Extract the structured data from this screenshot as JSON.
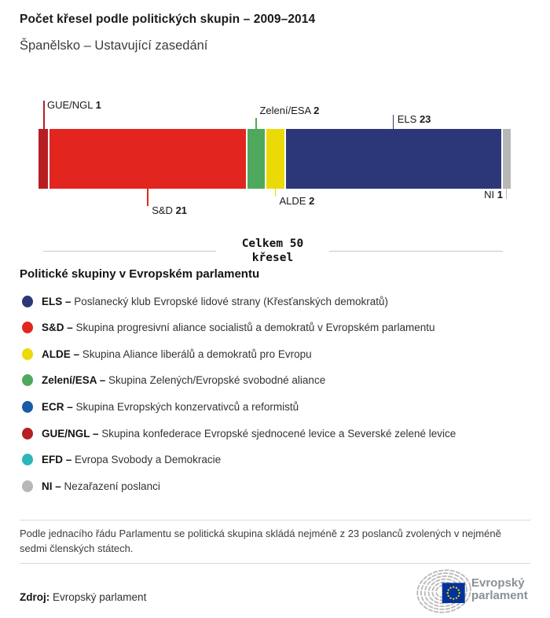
{
  "header": {
    "title": "Počet křesel podle politických skupin – 2009–2014",
    "subtitle": "Španělsko – Ustavující zasedání"
  },
  "chart_data": {
    "type": "bar",
    "stacked": true,
    "orientation": "horizontal",
    "title": "Počet křesel podle politických skupin – 2009–2014",
    "subtitle": "Španělsko – Ustavující zasedání",
    "total_seats": 50,
    "total_label_line1": "Celkem 50",
    "total_label_line2": "křesel",
    "segments": [
      {
        "code": "GUE/NGL",
        "seats": 1,
        "color": "#b71e23",
        "label_side": "above"
      },
      {
        "code": "S&D",
        "seats": 21,
        "color": "#e2261f",
        "label_side": "below"
      },
      {
        "code": "Zelení/ESA",
        "seats": 2,
        "color": "#4ea95c",
        "label_side": "above"
      },
      {
        "code": "ALDE",
        "seats": 2,
        "color": "#ecd908",
        "label_side": "below"
      },
      {
        "code": "ELS",
        "seats": 23,
        "color": "#2b3778",
        "label_side": "above"
      },
      {
        "code": "NI",
        "seats": 1,
        "color": "#b7b7b7",
        "label_side": "below"
      }
    ]
  },
  "legend": {
    "heading": "Politické skupiny v Evropském parlamentu",
    "items": [
      {
        "code": "ELS",
        "color": "#2b3778",
        "description": "Poslanecký klub Evropské lidové strany (Křesťanských demokratů)"
      },
      {
        "code": "S&D",
        "color": "#e2261f",
        "description": "Skupina progresivní aliance socialistů a demokratů v Evropském parlamentu"
      },
      {
        "code": "ALDE",
        "color": "#ecd908",
        "description": "Skupina Aliance liberálů a demokratů pro Evropu"
      },
      {
        "code": "Zelení/ESA",
        "color": "#4ea95c",
        "description": "Skupina Zelených/Evropské svobodné aliance"
      },
      {
        "code": "ECR",
        "color": "#1a5ba6",
        "description": "Skupina Evropských konzervativců a reformistů"
      },
      {
        "code": "GUE/NGL",
        "color": "#b71e23",
        "description": "Skupina konfederace Evropské sjednocené levice a Severské zelené levice"
      },
      {
        "code": "EFD",
        "color": "#2cb6bc",
        "description": "Evropa Svobody a Demokracie"
      },
      {
        "code": "NI",
        "color": "#b7b7b7",
        "description": "Nezařazení poslanci"
      }
    ]
  },
  "note": "Podle jednacího řádu Parlamentu se politická skupina skládá nejméně z 23 poslanců zvolených v nejméně sedmi členských státech.",
  "source": {
    "label": "Zdroj:",
    "value": "Evropský parlament"
  },
  "logo": {
    "line1": "Evropský",
    "line2": "parlament",
    "flag_color": "#003399",
    "star_color": "#ffcc00",
    "arc_color": "#b8b8b8"
  }
}
